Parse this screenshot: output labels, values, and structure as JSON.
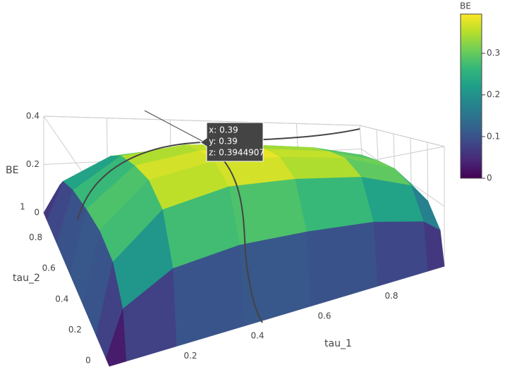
{
  "chart_data": {
    "type": "surface",
    "x_label": "tau_1",
    "y_label": "tau_2",
    "z_label": "BE",
    "x": [
      0,
      0.05,
      0.2,
      0.4,
      0.6,
      0.8,
      0.95,
      1
    ],
    "y": [
      0,
      0.05,
      0.2,
      0.4,
      0.6,
      0.8,
      0.95,
      1
    ],
    "z": [
      [
        0,
        0,
        0,
        0,
        0,
        0,
        0,
        0
      ],
      [
        0,
        0.119,
        0.195,
        0.217,
        0.21,
        0.191,
        0.152,
        0.108
      ],
      [
        0,
        0.195,
        0.319,
        0.355,
        0.344,
        0.312,
        0.248,
        0.177
      ],
      [
        0,
        0.217,
        0.355,
        0.394,
        0.382,
        0.347,
        0.276,
        0.197
      ],
      [
        0,
        0.21,
        0.344,
        0.382,
        0.371,
        0.336,
        0.268,
        0.191
      ],
      [
        0,
        0.191,
        0.312,
        0.347,
        0.336,
        0.305,
        0.243,
        0.173
      ],
      [
        0,
        0.152,
        0.248,
        0.276,
        0.268,
        0.243,
        0.193,
        0.138
      ],
      [
        0,
        0.108,
        0.177,
        0.197,
        0.191,
        0.173,
        0.138,
        0.099
      ]
    ],
    "xlim": [
      0,
      1
    ],
    "ylim": [
      0,
      1
    ],
    "zlim": [
      0,
      0.4
    ],
    "xticks": [
      0.2,
      0.4,
      0.6,
      0.8
    ],
    "yticks": [
      0,
      0.2,
      0.4,
      0.6,
      0.8,
      1
    ],
    "zticks": [
      0,
      0.2,
      0.4
    ],
    "colorscale": "Viridis",
    "cmin": 0,
    "cmax": 0.394,
    "colorbar": {
      "title": "BE",
      "ticks": [
        0,
        0.1,
        0.2,
        0.3
      ]
    },
    "hover": [
      "x: 0.39",
      "y: 0.39",
      "z: 0.3944907"
    ]
  }
}
